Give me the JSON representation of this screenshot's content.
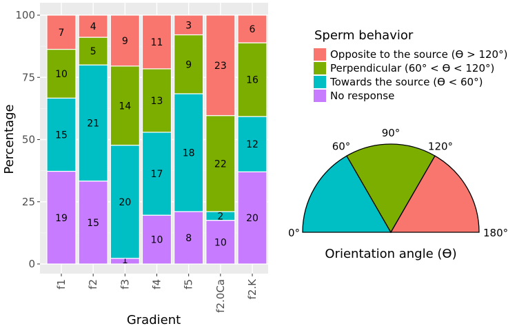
{
  "chart_data": {
    "type": "bar",
    "stacked": true,
    "normalized": true,
    "xlabel": "Gradient",
    "ylabel": "Percentage",
    "ylim": [
      0,
      100
    ],
    "yticks": [
      0,
      25,
      50,
      75,
      100
    ],
    "grid": true,
    "categories": [
      "f1",
      "f2",
      "f3",
      "f4",
      "f5",
      "f2.0Ca",
      "f2.K"
    ],
    "series": [
      {
        "name": "No response",
        "color": "#C77CFF",
        "values": [
          19,
          15,
          1,
          10,
          8,
          10,
          20
        ]
      },
      {
        "name": "Towards the source (ϴ < 60°)",
        "color": "#00BFC4",
        "values": [
          15,
          21,
          20,
          17,
          18,
          2,
          12
        ]
      },
      {
        "name": "Perpendicular (60° < ϴ < 120°)",
        "color": "#7CAE00",
        "values": [
          10,
          5,
          14,
          13,
          9,
          22,
          16
        ]
      },
      {
        "name": "Opposite to the source (ϴ > 120°)",
        "color": "#F8766D",
        "values": [
          7,
          4,
          9,
          11,
          3,
          23,
          6
        ]
      }
    ],
    "legend": {
      "title": "Sperm behavior",
      "position": "right",
      "order": [
        3,
        2,
        1,
        0
      ]
    }
  },
  "inset": {
    "title": "Orientation angle (ϴ)",
    "angle_labels": [
      {
        "angle": 0,
        "label": "0°"
      },
      {
        "angle": 60,
        "label": "60°"
      },
      {
        "angle": 90,
        "label": "90°"
      },
      {
        "angle": 120,
        "label": "120°"
      },
      {
        "angle": 180,
        "label": "180°"
      }
    ],
    "sectors": [
      {
        "from": 0,
        "to": 60,
        "color": "#00BFC4"
      },
      {
        "from": 60,
        "to": 120,
        "color": "#7CAE00"
      },
      {
        "from": 120,
        "to": 180,
        "color": "#F8766D"
      }
    ]
  }
}
